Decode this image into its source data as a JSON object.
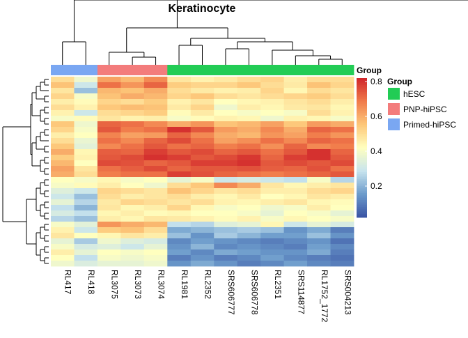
{
  "chart_data": {
    "type": "heatmap",
    "title": "Keratinocyte",
    "columns": [
      "RL417",
      "RL418",
      "RL3075",
      "RL3073",
      "RL3074",
      "RL1981",
      "RL2352",
      "SRS606777",
      "SRS606778",
      "RL2351",
      "SRS114877",
      "RL1752_1772",
      "SRS004213"
    ],
    "column_groups": [
      "Primed-hiPSC",
      "Primed-hiPSC",
      "PNP-hiPSC",
      "PNP-hiPSC",
      "PNP-hiPSC",
      "hESC",
      "hESC",
      "hESC",
      "hESC",
      "hESC",
      "hESC",
      "hESC",
      "hESC"
    ],
    "annotation_label": "Group",
    "legend": {
      "title": "Group",
      "items": [
        {
          "label": "hESC",
          "color": "#22CC55"
        },
        {
          "label": "PNP-hiPSC",
          "color": "#F37C7C"
        },
        {
          "label": "Primed-hiPSC",
          "color": "#7AA7F2"
        }
      ]
    },
    "colorbar": {
      "min": 0.02,
      "max": 0.82,
      "ticks": [
        "0.2",
        "0.4",
        "0.6",
        "0.8"
      ],
      "tick_values": [
        0.2,
        0.4,
        0.6,
        0.8
      ],
      "colors": [
        "#3953A3",
        "#6C9BCB",
        "#C8E4EE",
        "#FFFFBF",
        "#FDC779",
        "#F07A4A",
        "#D0242A"
      ]
    },
    "values": [
      [
        0.5,
        0.38,
        0.62,
        0.58,
        0.66,
        0.48,
        0.45,
        0.47,
        0.5,
        0.52,
        0.46,
        0.5,
        0.5
      ],
      [
        0.56,
        0.3,
        0.7,
        0.64,
        0.72,
        0.54,
        0.52,
        0.52,
        0.55,
        0.5,
        0.47,
        0.56,
        0.52
      ],
      [
        0.48,
        0.22,
        0.58,
        0.56,
        0.6,
        0.5,
        0.47,
        0.45,
        0.46,
        0.52,
        0.44,
        0.5,
        0.48
      ],
      [
        0.52,
        0.4,
        0.56,
        0.6,
        0.58,
        0.52,
        0.55,
        0.5,
        0.48,
        0.5,
        0.52,
        0.54,
        0.5
      ],
      [
        0.46,
        0.43,
        0.52,
        0.5,
        0.54,
        0.45,
        0.48,
        0.42,
        0.44,
        0.45,
        0.48,
        0.5,
        0.46
      ],
      [
        0.5,
        0.45,
        0.55,
        0.57,
        0.56,
        0.47,
        0.52,
        0.38,
        0.46,
        0.44,
        0.47,
        0.48,
        0.44
      ],
      [
        0.45,
        0.3,
        0.5,
        0.52,
        0.54,
        0.43,
        0.47,
        0.42,
        0.4,
        0.42,
        0.4,
        0.5,
        0.45
      ],
      [
        0.4,
        0.43,
        0.48,
        0.45,
        0.46,
        0.4,
        0.43,
        0.45,
        0.44,
        0.38,
        0.45,
        0.44,
        0.4
      ],
      [
        0.55,
        0.38,
        0.72,
        0.7,
        0.66,
        0.6,
        0.64,
        0.56,
        0.58,
        0.62,
        0.55,
        0.63,
        0.6
      ],
      [
        0.52,
        0.4,
        0.74,
        0.68,
        0.7,
        0.8,
        0.74,
        0.63,
        0.6,
        0.66,
        0.6,
        0.72,
        0.7
      ],
      [
        0.46,
        0.42,
        0.67,
        0.62,
        0.63,
        0.72,
        0.66,
        0.6,
        0.58,
        0.64,
        0.62,
        0.68,
        0.64
      ],
      [
        0.5,
        0.37,
        0.7,
        0.66,
        0.72,
        0.76,
        0.7,
        0.62,
        0.65,
        0.7,
        0.66,
        0.72,
        0.7
      ],
      [
        0.55,
        0.35,
        0.66,
        0.7,
        0.74,
        0.7,
        0.72,
        0.68,
        0.7,
        0.65,
        0.72,
        0.66,
        0.68
      ],
      [
        0.6,
        0.44,
        0.73,
        0.72,
        0.78,
        0.74,
        0.76,
        0.72,
        0.74,
        0.7,
        0.74,
        0.8,
        0.72
      ],
      [
        0.54,
        0.45,
        0.74,
        0.76,
        0.8,
        0.78,
        0.74,
        0.76,
        0.79,
        0.72,
        0.78,
        0.8,
        0.74
      ],
      [
        0.58,
        0.42,
        0.76,
        0.75,
        0.72,
        0.74,
        0.78,
        0.78,
        0.8,
        0.74,
        0.76,
        0.74,
        0.76
      ],
      [
        0.62,
        0.48,
        0.7,
        0.73,
        0.76,
        0.72,
        0.74,
        0.74,
        0.75,
        0.73,
        0.72,
        0.75,
        0.7
      ],
      [
        0.6,
        0.5,
        0.68,
        0.7,
        0.7,
        0.78,
        0.75,
        0.72,
        0.7,
        0.68,
        0.7,
        0.72,
        0.74
      ],
      [
        0.42,
        0.4,
        0.44,
        0.4,
        0.42,
        0.36,
        0.4,
        0.3,
        0.32,
        0.3,
        0.28,
        0.4,
        0.26
      ],
      [
        0.4,
        0.43,
        0.46,
        0.42,
        0.38,
        0.5,
        0.55,
        0.66,
        0.6,
        0.48,
        0.44,
        0.46,
        0.48
      ],
      [
        0.34,
        0.3,
        0.52,
        0.5,
        0.48,
        0.56,
        0.52,
        0.48,
        0.5,
        0.46,
        0.46,
        0.5,
        0.52
      ],
      [
        0.3,
        0.22,
        0.5,
        0.46,
        0.48,
        0.5,
        0.46,
        0.44,
        0.47,
        0.42,
        0.44,
        0.48,
        0.46
      ],
      [
        0.36,
        0.26,
        0.47,
        0.52,
        0.5,
        0.48,
        0.5,
        0.45,
        0.44,
        0.46,
        0.48,
        0.44,
        0.43
      ],
      [
        0.28,
        0.2,
        0.48,
        0.44,
        0.46,
        0.52,
        0.44,
        0.4,
        0.42,
        0.38,
        0.4,
        0.46,
        0.42
      ],
      [
        0.32,
        0.28,
        0.44,
        0.46,
        0.43,
        0.44,
        0.42,
        0.42,
        0.4,
        0.36,
        0.42,
        0.4,
        0.36
      ],
      [
        0.26,
        0.22,
        0.46,
        0.44,
        0.48,
        0.47,
        0.45,
        0.43,
        0.45,
        0.4,
        0.44,
        0.42,
        0.4
      ],
      [
        0.4,
        0.35,
        0.64,
        0.6,
        0.58,
        0.28,
        0.26,
        0.34,
        0.36,
        0.44,
        0.3,
        0.36,
        0.32
      ],
      [
        0.45,
        0.3,
        0.54,
        0.56,
        0.5,
        0.18,
        0.2,
        0.22,
        0.24,
        0.22,
        0.14,
        0.18,
        0.1
      ],
      [
        0.48,
        0.42,
        0.44,
        0.48,
        0.46,
        0.22,
        0.14,
        0.24,
        0.2,
        0.16,
        0.16,
        0.22,
        0.14
      ],
      [
        0.36,
        0.24,
        0.38,
        0.34,
        0.32,
        0.12,
        0.16,
        0.14,
        0.12,
        0.1,
        0.12,
        0.14,
        0.08
      ],
      [
        0.4,
        0.32,
        0.34,
        0.3,
        0.36,
        0.14,
        0.2,
        0.12,
        0.14,
        0.12,
        0.1,
        0.16,
        0.12
      ],
      [
        0.46,
        0.36,
        0.42,
        0.4,
        0.42,
        0.16,
        0.12,
        0.18,
        0.16,
        0.14,
        0.14,
        0.18,
        0.1
      ],
      [
        0.42,
        0.28,
        0.4,
        0.38,
        0.4,
        0.1,
        0.14,
        0.1,
        0.12,
        0.16,
        0.12,
        0.1,
        0.08
      ],
      [
        0.38,
        0.33,
        0.36,
        0.36,
        0.38,
        0.14,
        0.18,
        0.14,
        0.1,
        0.12,
        0.16,
        0.12,
        0.1
      ]
    ]
  }
}
